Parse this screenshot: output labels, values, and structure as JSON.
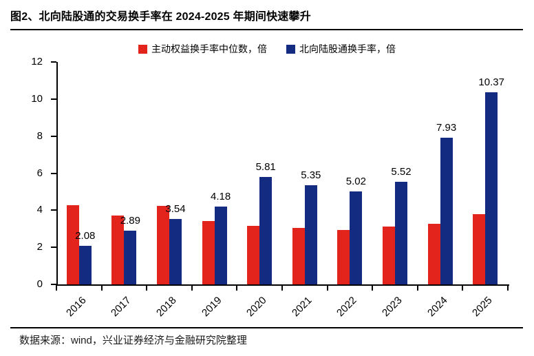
{
  "title": "图2、北向陆股通的交易换手率在 2024-2025 年期间快速攀升",
  "footer": "数据来源：wind，兴业证券经济与金融研究院整理",
  "colors": {
    "series_red": "#e2241c",
    "series_blue": "#132c82",
    "axis": "#000000",
    "text": "#000000"
  },
  "legend": {
    "items": [
      {
        "label": "主动权益换手率中位数，倍",
        "color": "#e2241c"
      },
      {
        "label": "北向陆股通换手率，倍",
        "color": "#132c82"
      }
    ]
  },
  "chart_data": {
    "type": "bar",
    "title": "北向陆股通的交易换手率在 2024-2025 年期间快速攀升",
    "categories": [
      "2016",
      "2017",
      "2018",
      "2019",
      "2020",
      "2021",
      "2022",
      "2023",
      "2024",
      "2025"
    ],
    "series": [
      {
        "name": "主动权益换手率中位数，倍",
        "color": "#e2241c",
        "values": [
          4.28,
          3.72,
          4.24,
          3.4,
          3.17,
          3.06,
          2.94,
          3.12,
          3.28,
          3.79
        ],
        "data_labels_shown": false
      },
      {
        "name": "北向陆股通换手率，倍",
        "color": "#132c82",
        "values": [
          2.08,
          2.89,
          3.54,
          4.18,
          5.81,
          5.35,
          5.02,
          5.52,
          7.93,
          10.37
        ],
        "data_labels_shown": true,
        "data_labels": [
          "2.08",
          "2.89",
          "3.54",
          "4.18",
          "5.81",
          "5.35",
          "5.02",
          "5.52",
          "7.93",
          "10.37"
        ]
      }
    ],
    "xlabel": "",
    "ylabel": "",
    "ylim": [
      0,
      12
    ],
    "yticks": [
      0,
      2,
      4,
      6,
      8,
      10,
      12
    ],
    "grid": false,
    "legend_position": "top"
  }
}
